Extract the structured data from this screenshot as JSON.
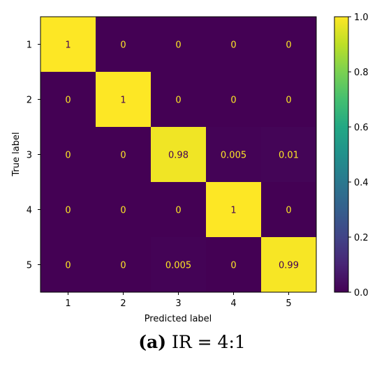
{
  "chart_data": {
    "type": "heatmap",
    "row_labels": [
      "1",
      "2",
      "3",
      "4",
      "5"
    ],
    "col_labels": [
      "1",
      "2",
      "3",
      "4",
      "5"
    ],
    "values": [
      [
        1,
        0,
        0,
        0,
        0
      ],
      [
        0,
        1,
        0,
        0,
        0
      ],
      [
        0,
        0,
        0.98,
        0.005,
        0.01
      ],
      [
        0,
        0,
        0,
        1,
        0
      ],
      [
        0,
        0,
        0.005,
        0,
        0.99
      ]
    ],
    "xlabel": "Predicted label",
    "ylabel": "True label",
    "colorbar": {
      "range": [
        0.0,
        1.0
      ],
      "ticks": [
        "0.0",
        "0.2",
        "0.4",
        "0.6",
        "0.8",
        "1.0"
      ],
      "colormap": "viridis"
    }
  },
  "caption": {
    "letter": "(a)",
    "text": " IR = 4:1"
  },
  "colors": {
    "low": "#440154",
    "high": "#fde725",
    "text_on_low": "#fde725",
    "text_on_high": "#440154"
  }
}
